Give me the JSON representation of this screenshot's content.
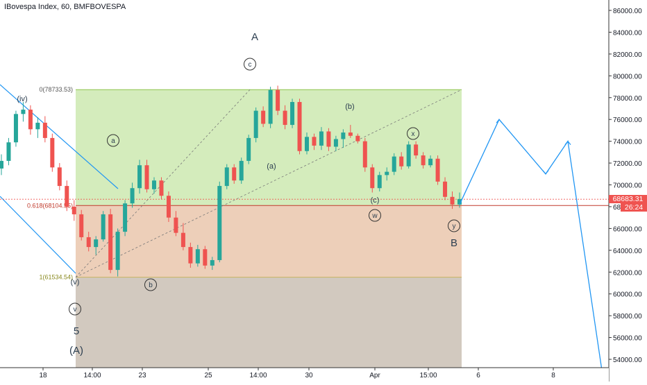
{
  "header": {
    "title": "IBovespa Index, 60, BMFBOVESPA"
  },
  "price_tag": {
    "price": "68683.31",
    "countdown": "26:24"
  },
  "colors": {
    "up": "#26a69a",
    "down": "#ef5350",
    "projection": "#2196f3",
    "fib_upper": "#c5e6a5",
    "fib_lower": "#e8c3a8",
    "fib_bottom": "#cdc3b8"
  },
  "chart_data": {
    "type": "candlestick",
    "symbol": "IBovespa Index",
    "interval": "60",
    "exchange": "BMFBOVESPA",
    "ylim": [
      53000,
      87000
    ],
    "y_ticks": [
      "54000.00",
      "56000.00",
      "58000.00",
      "60000.00",
      "62000.00",
      "64000.00",
      "66000.00",
      "68000.00",
      "70000.00",
      "72000.00",
      "74000.00",
      "76000.00",
      "78000.00",
      "80000.00",
      "82000.00",
      "84000.00",
      "86000.00"
    ],
    "x_ticks": [
      "18",
      "14:00",
      "23",
      "25",
      "14:00",
      "30",
      "Apr",
      "15:00",
      "6",
      "8"
    ],
    "last_price": 68683.31,
    "fib_levels": [
      {
        "label": "0(78733.53)",
        "ratio": 0,
        "price": 78733.53
      },
      {
        "label": "0.618(68104.55)",
        "ratio": 0.618,
        "price": 68104.55
      },
      {
        "label": "1(61534.54)",
        "ratio": 1,
        "price": 61534.54
      }
    ],
    "wave_labels": [
      "(iv)",
      "(v)",
      "v",
      "5",
      "(A)",
      "a",
      "b",
      "c",
      "A",
      "(a)",
      "(b)",
      "(c)",
      "w",
      "x",
      "y",
      "B"
    ],
    "candles": [
      [
        71500,
        72800,
        70900,
        72200
      ],
      [
        72200,
        74300,
        71800,
        73900
      ],
      [
        73900,
        76800,
        73500,
        76500
      ],
      [
        76500,
        77600,
        75800,
        76900
      ],
      [
        76900,
        77300,
        74600,
        75100
      ],
      [
        75100,
        76200,
        74300,
        75700
      ],
      [
        75700,
        76300,
        73900,
        74300
      ],
      [
        74300,
        74700,
        71200,
        71600
      ],
      [
        71600,
        72000,
        69500,
        69900
      ],
      [
        69900,
        70400,
        67600,
        68000
      ],
      [
        68000,
        68600,
        66700,
        67300
      ],
      [
        67300,
        67700,
        64900,
        65200
      ],
      [
        65200,
        65700,
        63900,
        64300
      ],
      [
        64300,
        65300,
        63600,
        65000
      ],
      [
        65000,
        67600,
        64800,
        67300
      ],
      [
        67300,
        67800,
        61900,
        62200
      ],
      [
        62200,
        66000,
        61600,
        65700
      ],
      [
        65700,
        68600,
        65300,
        68300
      ],
      [
        68300,
        70200,
        67900,
        69700
      ],
      [
        69700,
        72300,
        69200,
        71800
      ],
      [
        71800,
        72300,
        69300,
        69600
      ],
      [
        69600,
        70700,
        69200,
        70400
      ],
      [
        70400,
        70700,
        68700,
        69000
      ],
      [
        69000,
        69400,
        66600,
        67000
      ],
      [
        67000,
        67600,
        65300,
        65600
      ],
      [
        65600,
        66500,
        64000,
        64300
      ],
      [
        64300,
        64700,
        62400,
        62800
      ],
      [
        62800,
        64500,
        62500,
        64100
      ],
      [
        64100,
        64400,
        62300,
        62600
      ],
      [
        62600,
        63400,
        62200,
        63100
      ],
      [
        63100,
        70300,
        62900,
        69900
      ],
      [
        69900,
        71900,
        69600,
        71600
      ],
      [
        71600,
        71900,
        70100,
        70400
      ],
      [
        70400,
        72500,
        70100,
        72200
      ],
      [
        72200,
        74600,
        71900,
        74300
      ],
      [
        74300,
        77100,
        73900,
        76800
      ],
      [
        76800,
        77200,
        75300,
        75600
      ],
      [
        75600,
        79000,
        75200,
        78700
      ],
      [
        78700,
        79100,
        76400,
        76800
      ],
      [
        76800,
        77300,
        75100,
        75500
      ],
      [
        75500,
        77900,
        75200,
        77600
      ],
      [
        77600,
        77900,
        72800,
        73100
      ],
      [
        73100,
        74800,
        72800,
        74400
      ],
      [
        74400,
        74700,
        73200,
        73600
      ],
      [
        73600,
        75300,
        73200,
        74900
      ],
      [
        74900,
        75200,
        73100,
        73500
      ],
      [
        73500,
        74500,
        73100,
        74200
      ],
      [
        74200,
        75100,
        73400,
        74800
      ],
      [
        74800,
        75500,
        74300,
        74500
      ],
      [
        74500,
        74700,
        73800,
        74000
      ],
      [
        74000,
        74300,
        71200,
        71600
      ],
      [
        71600,
        71900,
        69300,
        69700
      ],
      [
        69700,
        71200,
        69400,
        70900
      ],
      [
        70900,
        71600,
        70400,
        71200
      ],
      [
        71200,
        72900,
        70900,
        72600
      ],
      [
        72600,
        73000,
        71400,
        71700
      ],
      [
        71700,
        74000,
        71500,
        73700
      ],
      [
        73700,
        74000,
        72400,
        72700
      ],
      [
        72700,
        73000,
        71500,
        71800
      ],
      [
        71800,
        72700,
        71600,
        72400
      ],
      [
        72400,
        72700,
        70000,
        70300
      ],
      [
        70300,
        70700,
        68600,
        68900
      ],
      [
        68900,
        69400,
        67800,
        68200
      ],
      [
        68200,
        69300,
        67900,
        68700
      ]
    ],
    "projection": [
      {
        "t": 0,
        "price": 68200
      },
      {
        "t": 1,
        "price": 76000
      },
      {
        "t": 2,
        "price": 71000
      },
      {
        "t": 3,
        "price": 74000
      },
      {
        "t": 4,
        "price": 53000
      }
    ]
  }
}
